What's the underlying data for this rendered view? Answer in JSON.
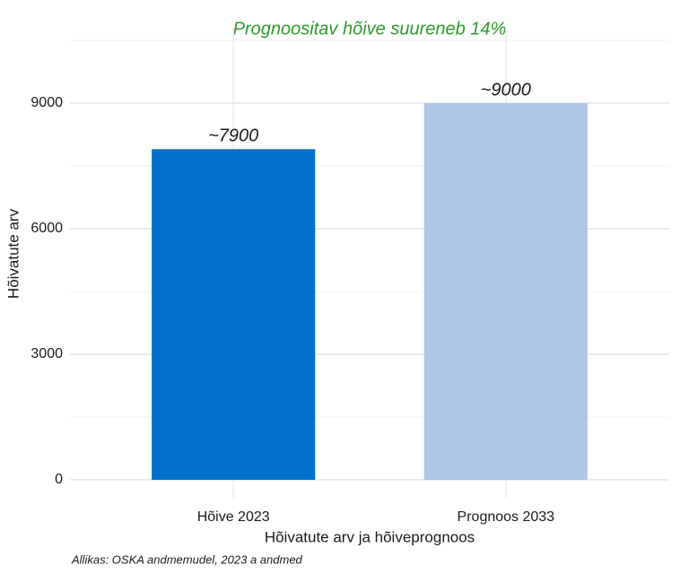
{
  "chart_data": {
    "type": "bar",
    "title": "Prognoositav hõive suureneb 14%",
    "categories": [
      "Hõive 2023",
      "Prognoos 2033"
    ],
    "values": [
      7900,
      9000
    ],
    "value_labels": [
      "~7900",
      "~9000"
    ],
    "colors": [
      "#0070cc",
      "#aec7e8"
    ],
    "ylim": [
      0,
      10500
    ],
    "yticks": [
      0,
      3000,
      6000,
      9000
    ],
    "y_minor_ticks": [
      1500,
      4500,
      7500,
      10500
    ],
    "grid": true,
    "x_label": "Hõivatute arv ja hõiveprognoos",
    "y_label": "Hõivatute arv",
    "caption": "Allikas: OSKA andmemudel, 2023 a andmed"
  }
}
